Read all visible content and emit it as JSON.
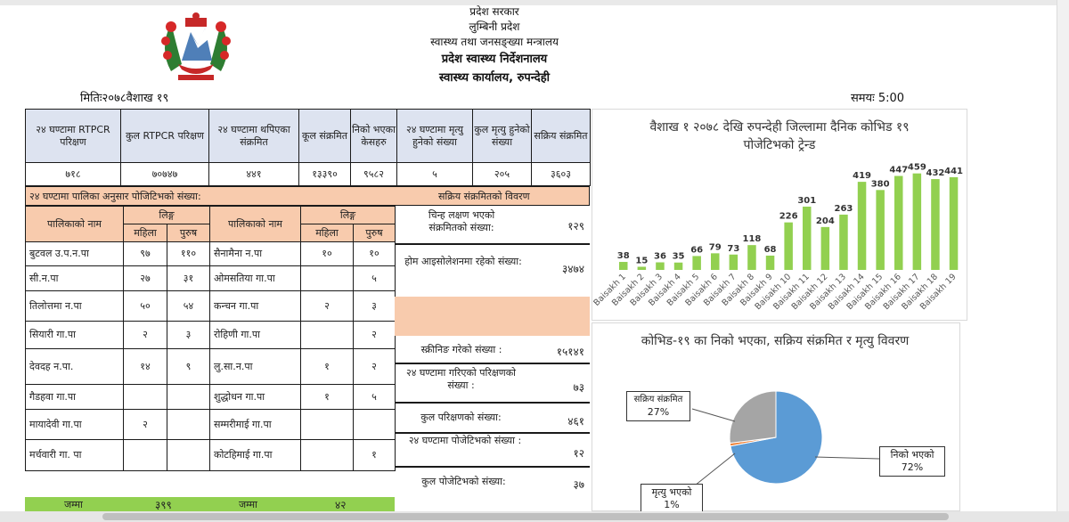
{
  "header": {
    "line1": "प्रदेश सरकार",
    "line2": "लुम्बिनी प्रदेश",
    "line3": "स्वास्थ्य तथा जनसङ्ख्या मन्त्रालय",
    "line4": "प्रदेश स्वास्थ्य निर्देशनालय",
    "line5": "स्वास्थ्य कार्यालय, रुपन्देही"
  },
  "date_label": "मितिः२०७८वैशाख १९",
  "time_label": "समयः 5:00",
  "summary": {
    "headers": [
      "२४ घण्टामा RTPCR परिक्षण",
      "कुल RTPCR परिक्षण",
      "२४ घण्टामा थपिएका संक्रमित",
      "कूल संक्रमित",
      "निको भएका केसहरु",
      "२४ घण्टामा मृत्यु हुनेको संख्या",
      "कुल मृत्यु हुनेको संख्या",
      "सक्रिय संक्रमित"
    ],
    "values": [
      "७१८",
      "७०७४७",
      "४४१",
      "१३३९०",
      "९५८२",
      "५",
      "२०५",
      "३६०३"
    ]
  },
  "band_left": "२४ घण्टामा पालिका अनुसार पोजिटिभको संख्या:",
  "band_right": "सक्रिय संक्रमितको विवरण",
  "palika_table": {
    "col_name": "पालिकाको नाम",
    "col_gender": "लिङ्ग",
    "col_female": "महिला",
    "col_male": "पुरुष",
    "rows": [
      {
        "n1": "बुटवल उ.प.न.पा",
        "f1": "९७",
        "m1": "११०",
        "n2": "सैनामैना न.पा",
        "f2": "१०",
        "m2": "१०"
      },
      {
        "n1": "सी.न.पा",
        "f1": "२७",
        "m1": "३१",
        "n2": "ओमसतिया गा.पा",
        "f2": "",
        "m2": "५"
      },
      {
        "n1": "तिलोत्तमा न.पा",
        "f1": "५०",
        "m1": "५४",
        "n2": "कन्चन गा.पा",
        "f2": "२",
        "m2": "३"
      },
      {
        "n1": "सियारी गा.पा",
        "f1": "२",
        "m1": "३",
        "n2": "रोहिणी गा.पा",
        "f2": "",
        "m2": "२"
      },
      {
        "n1": "देवदह न.पा.",
        "f1": "१४",
        "m1": "९",
        "n2": "लु.सा.न.पा",
        "f2": "१",
        "m2": "२"
      },
      {
        "n1": "गैडहवा गा.पा",
        "f1": "",
        "m1": "",
        "n2": "शुद्धोधन गा.पा",
        "f2": "१",
        "m2": "५"
      },
      {
        "n1": "मायादेवी गा.पा",
        "f1": "२",
        "m1": "",
        "n2": "सम्मरीमाई गा.पा",
        "f2": "",
        "m2": ""
      },
      {
        "n1": "मर्चवारी गा. पा",
        "f1": "",
        "m1": "",
        "n2": "कोटहिमाई गा.पा",
        "f2": "",
        "m2": "१"
      }
    ],
    "total_label": "जम्मा",
    "total_left": "३९९",
    "total_label2": "जम्मा",
    "total_right": "४२"
  },
  "active_cases": [
    {
      "label": "चिन्ह लक्षण भएको संक्रमितको संख्या:",
      "value": "१२९"
    },
    {
      "label": "होम आइसोलेशनमा रहेको संख्या:",
      "value": "३४७४"
    },
    {
      "label": "स्क्रीनिङ गरेको संख्या :",
      "value": "१५१४१"
    },
    {
      "label": "२४ घण्टामा गरिएको परिक्षणको संख्या :",
      "value": "७३"
    },
    {
      "label": "कुल परिक्षणको संख्या:",
      "value": "४६१"
    },
    {
      "label": "२४ घण्टामा पोजेटिभको संख्या :",
      "value": "१२"
    },
    {
      "label": "कुल पोजेटिभको संख्या:",
      "value": "३७"
    }
  ],
  "bar_colors": {
    "bar": "#92d050",
    "axis_text": "#555555"
  },
  "chart_data": [
    {
      "type": "bar",
      "title": "वैशाख १ २०७८ देखि रुपन्देही जिल्लामा दैनिक कोभिड १९ पोजेटिभको ट्रेन्ड",
      "categories": [
        "Baisakh 1",
        "Baisakh 2",
        "Baisakh 3",
        "Baisakh 4",
        "Baisakh 5",
        "Baisakh 6",
        "Baisakh 7",
        "Baisakh 8",
        "Baisakh 9",
        "Baisakh 10",
        "Baisakh 11",
        "Baisakh 12",
        "Baisakh 13",
        "Baisakh 14",
        "Baisakh 15",
        "Baisakh 16",
        "Baisakh 17",
        "Baisakh 18",
        "Baisakh 19"
      ],
      "values": [
        38,
        15,
        36,
        35,
        66,
        79,
        73,
        118,
        68,
        226,
        301,
        204,
        263,
        419,
        380,
        447,
        459,
        432,
        441
      ],
      "labels": [
        "38",
        "15",
        "36",
        "35",
        "66",
        "79",
        "73",
        "118",
        "68",
        "226",
        "301",
        "204",
        "263",
        "419",
        "380",
        "447",
        "459",
        "432",
        "441"
      ],
      "xlabel": "",
      "ylabel": "",
      "ylim": [
        0,
        500
      ],
      "grid": false,
      "legend": "none",
      "color": "#92d050"
    },
    {
      "type": "pie",
      "title": "कोभिड-१९ का निको भएका, सक्रिय संक्रमित र मृत्यु विवरण",
      "slices": [
        {
          "label": "निको भएको",
          "pct_label": "72%",
          "value": 72,
          "color": "#5b9bd5"
        },
        {
          "label": "मृत्यु भएको",
          "pct_label": "1%",
          "value": 1,
          "color": "#ed7d31"
        },
        {
          "label": "सक्रिय संक्रमित",
          "pct_label": "27%",
          "value": 27,
          "color": "#a5a5a5"
        }
      ],
      "legend": "none"
    }
  ]
}
